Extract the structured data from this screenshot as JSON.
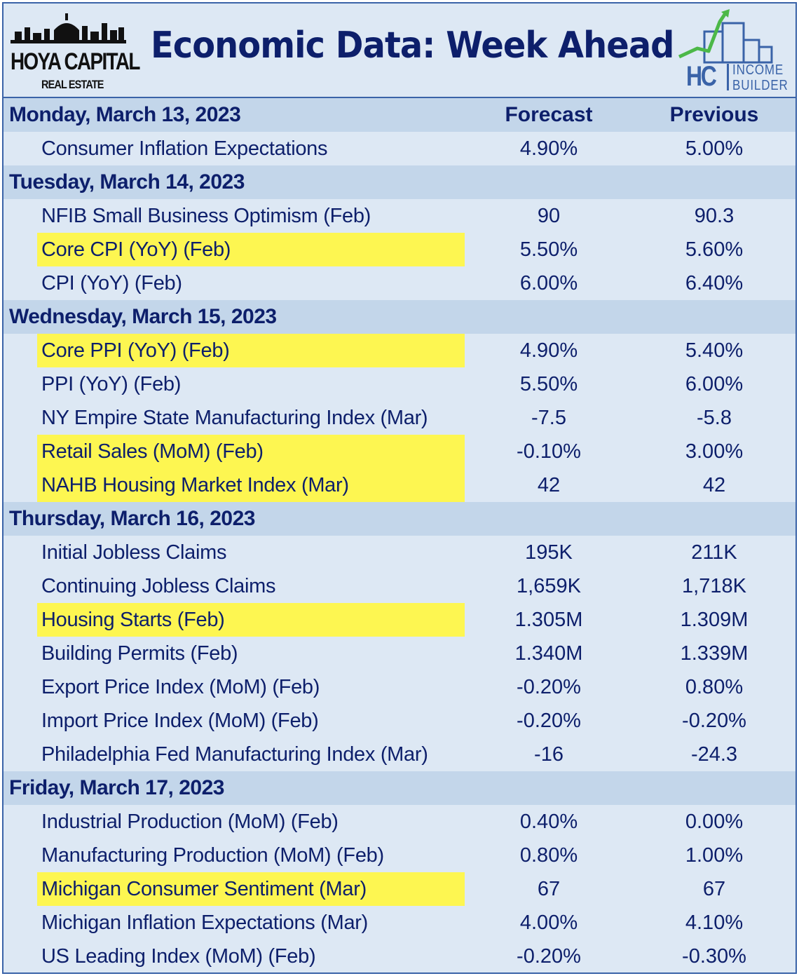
{
  "header": {
    "brand_left_name": "HOYA CAPITAL",
    "brand_left_sub": "REAL ESTATE",
    "title": "Economic Data: Week Ahead",
    "brand_right_initials": "HC",
    "brand_right_word1": "INCOME",
    "brand_right_word2": "BUILDER"
  },
  "columns": {
    "forecast": "Forecast",
    "previous": "Previous"
  },
  "colors": {
    "navy": "#0d1f6b",
    "border": "#3a63a8",
    "highlight": "#fdf651",
    "row_bg": "#dde8f4",
    "day_bg": "#c3d6ea"
  },
  "days": [
    {
      "date": "Monday, March 13, 2023",
      "events": [
        {
          "name": "Consumer Inflation Expectations",
          "forecast": "4.90%",
          "previous": "5.00%",
          "highlight": false
        }
      ]
    },
    {
      "date": "Tuesday, March 14, 2023",
      "events": [
        {
          "name": "NFIB Small Business Optimism (Feb)",
          "forecast": "90",
          "previous": "90.3",
          "highlight": false
        },
        {
          "name": "Core CPI (YoY) (Feb)",
          "forecast": "5.50%",
          "previous": "5.60%",
          "highlight": true
        },
        {
          "name": "CPI (YoY) (Feb)",
          "forecast": "6.00%",
          "previous": "6.40%",
          "highlight": false
        }
      ]
    },
    {
      "date": "Wednesday, March 15, 2023",
      "events": [
        {
          "name": "Core PPI (YoY) (Feb)",
          "forecast": "4.90%",
          "previous": "5.40%",
          "highlight": true
        },
        {
          "name": "PPI (YoY) (Feb)",
          "forecast": "5.50%",
          "previous": "6.00%",
          "highlight": false
        },
        {
          "name": "NY Empire State Manufacturing Index (Mar)",
          "forecast": "-7.5",
          "previous": "-5.8",
          "highlight": false
        },
        {
          "name": "Retail Sales (MoM) (Feb)",
          "forecast": "-0.10%",
          "previous": "3.00%",
          "highlight": true
        },
        {
          "name": "NAHB Housing Market Index (Mar)",
          "forecast": "42",
          "previous": "42",
          "highlight": true
        }
      ]
    },
    {
      "date": "Thursday, March 16, 2023",
      "events": [
        {
          "name": "Initial Jobless Claims",
          "forecast": "195K",
          "previous": "211K",
          "highlight": false
        },
        {
          "name": "Continuing Jobless Claims",
          "forecast": "1,659K",
          "previous": "1,718K",
          "highlight": false
        },
        {
          "name": "Housing Starts (Feb)",
          "forecast": "1.305M",
          "previous": "1.309M",
          "highlight": true
        },
        {
          "name": "Building Permits (Feb)",
          "forecast": "1.340M",
          "previous": "1.339M",
          "highlight": false
        },
        {
          "name": "Export Price Index (MoM) (Feb)",
          "forecast": "-0.20%",
          "previous": "0.80%",
          "highlight": false
        },
        {
          "name": "Import Price Index (MoM) (Feb)",
          "forecast": "-0.20%",
          "previous": "-0.20%",
          "highlight": false
        },
        {
          "name": "Philadelphia Fed Manufacturing Index (Mar)",
          "forecast": "-16",
          "previous": "-24.3",
          "highlight": false
        }
      ]
    },
    {
      "date": "Friday, March 17, 2023",
      "events": [
        {
          "name": "Industrial Production (MoM) (Feb)",
          "forecast": "0.40%",
          "previous": "0.00%",
          "highlight": false
        },
        {
          "name": "Manufacturing Production (MoM) (Feb)",
          "forecast": "0.80%",
          "previous": "1.00%",
          "highlight": false
        },
        {
          "name": "Michigan Consumer Sentiment (Mar)",
          "forecast": "67",
          "previous": "67",
          "highlight": true
        },
        {
          "name": "Michigan Inflation Expectations (Mar)",
          "forecast": "4.00%",
          "previous": "4.10%",
          "highlight": false
        },
        {
          "name": "US Leading Index (MoM) (Feb)",
          "forecast": "-0.20%",
          "previous": "-0.30%",
          "highlight": false
        }
      ]
    }
  ]
}
